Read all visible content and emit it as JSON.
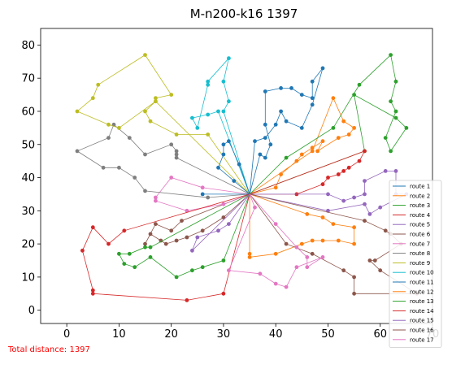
{
  "chart_data": {
    "type": "line",
    "title": "M-n200-k16 1397",
    "xlabel": "",
    "ylabel": "",
    "xlim": [
      -5,
      70
    ],
    "ylim": [
      -4,
      85
    ],
    "xticks": [
      0,
      10,
      20,
      30,
      40,
      50,
      60,
      70
    ],
    "yticks": [
      0,
      10,
      20,
      30,
      40,
      50,
      60,
      70,
      80
    ],
    "grid": false,
    "legend_position": "lower-right",
    "depot": [
      35,
      35
    ],
    "series": [
      {
        "name": "route 1",
        "color": "#1f77b4",
        "points": [
          [
            35,
            35
          ],
          [
            37,
            47
          ],
          [
            38,
            46
          ],
          [
            39,
            50
          ],
          [
            38,
            56
          ],
          [
            38,
            66
          ],
          [
            41,
            67
          ],
          [
            43,
            67
          ],
          [
            45,
            65
          ],
          [
            47,
            64
          ],
          [
            47,
            69
          ],
          [
            49,
            73
          ],
          [
            47,
            62
          ],
          [
            45,
            55
          ],
          [
            42,
            57
          ],
          [
            41,
            60
          ],
          [
            40,
            56
          ],
          [
            38,
            52
          ],
          [
            36,
            51
          ],
          [
            35,
            35
          ]
        ]
      },
      {
        "name": "route 2",
        "color": "#ff7f0e",
        "points": [
          [
            35,
            35
          ],
          [
            40,
            37
          ],
          [
            41,
            41
          ],
          [
            44,
            45
          ],
          [
            45,
            47
          ],
          [
            47,
            49
          ],
          [
            49,
            51
          ],
          [
            48,
            48
          ],
          [
            52,
            52
          ],
          [
            54,
            53
          ],
          [
            55,
            55
          ],
          [
            53,
            57
          ],
          [
            51,
            64
          ],
          [
            47,
            48
          ],
          [
            35,
            35
          ]
        ]
      },
      {
        "name": "route 3",
        "color": "#2ca02c",
        "points": [
          [
            35,
            35
          ],
          [
            42,
            46
          ],
          [
            51,
            55
          ],
          [
            56,
            68
          ],
          [
            62,
            77
          ],
          [
            63,
            69
          ],
          [
            62,
            63
          ],
          [
            63,
            60
          ],
          [
            61,
            52
          ],
          [
            62,
            48
          ],
          [
            65,
            55
          ],
          [
            63,
            58
          ],
          [
            55,
            65
          ],
          [
            57,
            48
          ],
          [
            35,
            35
          ]
        ]
      },
      {
        "name": "route 4",
        "color": "#d62728",
        "points": [
          [
            35,
            35
          ],
          [
            44,
            35
          ],
          [
            49,
            38
          ],
          [
            50,
            40
          ],
          [
            52,
            41
          ],
          [
            53,
            42
          ],
          [
            54,
            43
          ],
          [
            56,
            45
          ],
          [
            57,
            48
          ],
          [
            35,
            35
          ]
        ]
      },
      {
        "name": "route 5",
        "color": "#9467bd",
        "points": [
          [
            35,
            35
          ],
          [
            50,
            35
          ],
          [
            53,
            33
          ],
          [
            55,
            34
          ],
          [
            57,
            35
          ],
          [
            57,
            39
          ],
          [
            61,
            42
          ],
          [
            63,
            42
          ],
          [
            63,
            35
          ],
          [
            65,
            35
          ],
          [
            60,
            31
          ],
          [
            58,
            29
          ],
          [
            57,
            32
          ],
          [
            50,
            30
          ],
          [
            35,
            35
          ]
        ]
      },
      {
        "name": "route 6",
        "color": "#8c564b",
        "points": [
          [
            35,
            35
          ],
          [
            30,
            28
          ],
          [
            26,
            24
          ],
          [
            23,
            22
          ],
          [
            21,
            21
          ],
          [
            19,
            20
          ],
          [
            18,
            21
          ],
          [
            16,
            23
          ],
          [
            15,
            20
          ],
          [
            17,
            26
          ],
          [
            20,
            24
          ],
          [
            22,
            27
          ],
          [
            35,
            35
          ]
        ]
      },
      {
        "name": "route 7",
        "color": "#e377c2",
        "points": [
          [
            35,
            35
          ],
          [
            30,
            32
          ],
          [
            23,
            30
          ],
          [
            17,
            33
          ],
          [
            17,
            34
          ],
          [
            20,
            40
          ],
          [
            26,
            37
          ],
          [
            35,
            35
          ]
        ]
      },
      {
        "name": "route 8",
        "color": "#7f7f7f",
        "points": [
          [
            35,
            35
          ],
          [
            27,
            34
          ],
          [
            15,
            36
          ],
          [
            13,
            40
          ],
          [
            10,
            43
          ],
          [
            7,
            43
          ],
          [
            2,
            48
          ],
          [
            8,
            52
          ],
          [
            9,
            56
          ],
          [
            12,
            52
          ],
          [
            15,
            47
          ],
          [
            20,
            50
          ],
          [
            21,
            48
          ],
          [
            21,
            47
          ],
          [
            21,
            46
          ],
          [
            35,
            35
          ]
        ]
      },
      {
        "name": "route 9",
        "color": "#bcbd22",
        "points": [
          [
            35,
            35
          ],
          [
            27,
            53
          ],
          [
            21,
            53
          ],
          [
            16,
            57
          ],
          [
            15,
            60
          ],
          [
            17,
            63
          ],
          [
            17,
            64
          ],
          [
            20,
            65
          ],
          [
            15,
            77
          ],
          [
            6,
            68
          ],
          [
            5,
            64
          ],
          [
            2,
            60
          ],
          [
            8,
            56
          ],
          [
            10,
            55
          ],
          [
            17,
            63
          ],
          [
            35,
            35
          ]
        ]
      },
      {
        "name": "route 10",
        "color": "#17becf",
        "points": [
          [
            35,
            35
          ],
          [
            29,
            60
          ],
          [
            27,
            59
          ],
          [
            24,
            58
          ],
          [
            25,
            55
          ],
          [
            27,
            68
          ],
          [
            27,
            69
          ],
          [
            31,
            76
          ],
          [
            30,
            69
          ],
          [
            31,
            63
          ],
          [
            30,
            60
          ],
          [
            35,
            35
          ]
        ]
      },
      {
        "name": "route 11",
        "color": "#1f77b4",
        "points": [
          [
            35,
            35
          ],
          [
            32,
            39
          ],
          [
            29,
            43
          ],
          [
            30,
            47
          ],
          [
            30,
            50
          ],
          [
            31,
            51
          ],
          [
            33,
            44
          ],
          [
            35,
            35
          ],
          [
            26,
            35
          ],
          [
            35,
            35
          ]
        ]
      },
      {
        "name": "route 12",
        "color": "#ff7f0e",
        "points": [
          [
            35,
            35
          ],
          [
            35,
            17
          ],
          [
            35,
            16
          ],
          [
            40,
            17
          ],
          [
            45,
            20
          ],
          [
            47,
            21
          ],
          [
            49,
            21
          ],
          [
            52,
            21
          ],
          [
            55,
            20
          ],
          [
            55,
            25
          ],
          [
            51,
            26
          ],
          [
            49,
            28
          ],
          [
            46,
            29
          ],
          [
            35,
            35
          ]
        ]
      },
      {
        "name": "route 13",
        "color": "#2ca02c",
        "points": [
          [
            35,
            35
          ],
          [
            30,
            15
          ],
          [
            26,
            13
          ],
          [
            24,
            12
          ],
          [
            21,
            10
          ],
          [
            16,
            16
          ],
          [
            13,
            13
          ],
          [
            11,
            14
          ],
          [
            10,
            17
          ],
          [
            12,
            17
          ],
          [
            15,
            19
          ],
          [
            16,
            19
          ],
          [
            35,
            35
          ]
        ]
      },
      {
        "name": "route 14",
        "color": "#d62728",
        "points": [
          [
            35,
            35
          ],
          [
            30,
            5
          ],
          [
            23,
            3
          ],
          [
            5,
            5
          ],
          [
            5,
            6
          ],
          [
            3,
            18
          ],
          [
            5,
            25
          ],
          [
            8,
            20
          ],
          [
            11,
            24
          ],
          [
            35,
            35
          ]
        ]
      },
      {
        "name": "route 15",
        "color": "#9467bd",
        "points": [
          [
            35,
            35
          ],
          [
            24,
            18
          ],
          [
            25,
            22
          ],
          [
            29,
            24
          ],
          [
            31,
            26
          ],
          [
            35,
            35
          ]
        ]
      },
      {
        "name": "route 16",
        "color": "#8c564b",
        "points": [
          [
            35,
            35
          ],
          [
            57,
            27
          ],
          [
            61,
            24
          ],
          [
            62,
            23
          ],
          [
            64,
            20
          ],
          [
            59,
            15
          ],
          [
            58,
            15
          ],
          [
            60,
            12
          ],
          [
            67,
            5
          ],
          [
            55,
            5
          ],
          [
            55,
            10
          ],
          [
            53,
            12
          ],
          [
            47,
            17
          ],
          [
            42,
            20
          ],
          [
            35,
            35
          ]
        ]
      },
      {
        "name": "route 17",
        "color": "#e377c2",
        "points": [
          [
            35,
            35
          ],
          [
            40,
            26
          ],
          [
            44,
            19
          ],
          [
            46,
            16
          ],
          [
            46,
            13
          ],
          [
            49,
            16
          ],
          [
            44,
            13
          ],
          [
            42,
            7
          ],
          [
            40,
            8
          ],
          [
            37,
            11
          ],
          [
            31,
            12
          ],
          [
            36,
            31
          ],
          [
            35,
            35
          ]
        ]
      }
    ]
  },
  "footer": {
    "total_distance": "Total distance: 1397"
  }
}
